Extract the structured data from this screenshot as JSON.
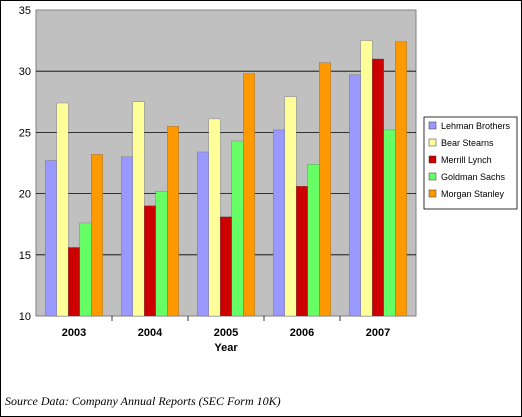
{
  "chart_data": {
    "type": "bar",
    "categories": [
      "2003",
      "2004",
      "2005",
      "2006",
      "2007"
    ],
    "series": [
      {
        "name": "Lehman Brothers",
        "color": "#9999FF",
        "values": [
          22.7,
          23.0,
          23.4,
          25.2,
          29.7
        ]
      },
      {
        "name": "Bear Stearns",
        "color": "#FFFF99",
        "values": [
          27.4,
          27.5,
          26.1,
          27.9,
          32.5
        ]
      },
      {
        "name": "Merrill Lynch",
        "color": "#CC0000",
        "values": [
          15.6,
          19.0,
          18.1,
          20.6,
          31.0
        ]
      },
      {
        "name": "Goldman Sachs",
        "color": "#66FF66",
        "values": [
          17.6,
          20.2,
          24.3,
          22.4,
          25.2
        ]
      },
      {
        "name": "Morgan Stanley",
        "color": "#FF9900",
        "values": [
          23.2,
          25.5,
          29.8,
          30.7,
          32.4
        ]
      }
    ],
    "xlabel": "Year",
    "ylabel": "",
    "ylim": [
      10,
      35
    ],
    "yticks": [
      "10",
      "15",
      "20",
      "25",
      "30",
      "35"
    ],
    "grid": true,
    "legend_position": "right",
    "plot_background": "#C0C0C0"
  },
  "footer": {
    "source_note": "Source Data: Company Annual Reports (SEC Form 10K)"
  }
}
